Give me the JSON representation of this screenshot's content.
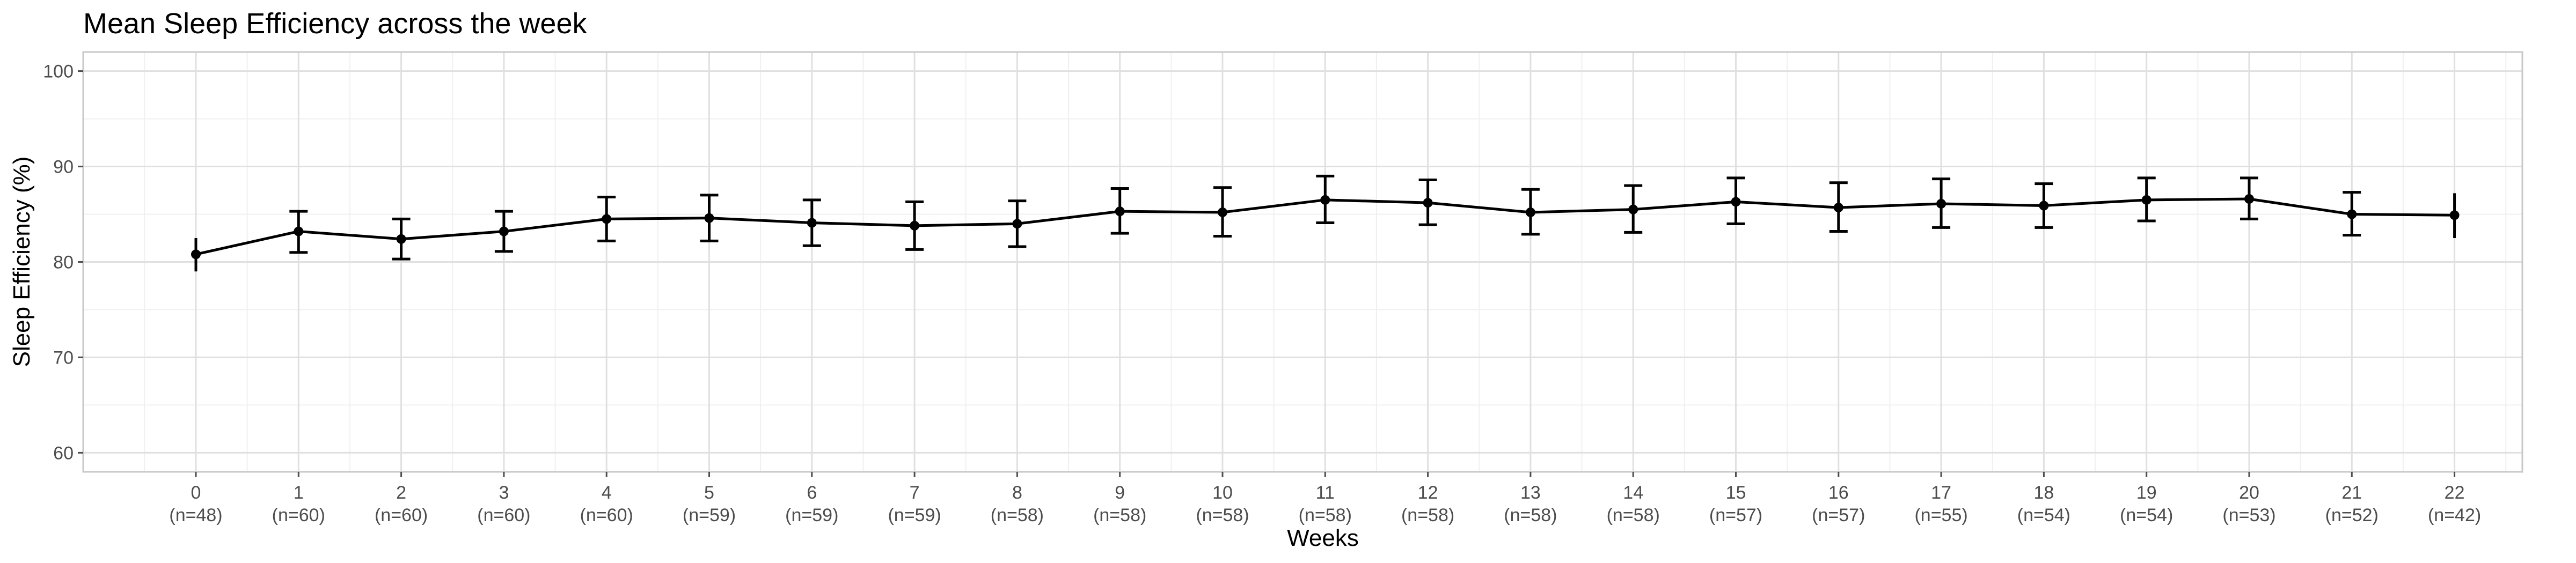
{
  "chart_data": {
    "type": "line",
    "title": "Mean Sleep Efficiency across the week",
    "xlabel": "Weeks",
    "ylabel": "Sleep Efficiency (%)",
    "ylim": [
      58,
      102
    ],
    "yticks": [
      60,
      70,
      80,
      90,
      100
    ],
    "grid": true,
    "x": [
      "0",
      "1",
      "2",
      "3",
      "4",
      "5",
      "6",
      "7",
      "8",
      "9",
      "10",
      "11",
      "12",
      "13",
      "14",
      "15",
      "16",
      "17",
      "18",
      "19",
      "20",
      "21",
      "22"
    ],
    "n_labels": [
      "(n=48)",
      "(n=60)",
      "(n=60)",
      "(n=60)",
      "(n=60)",
      "(n=59)",
      "(n=59)",
      "(n=59)",
      "(n=58)",
      "(n=58)",
      "(n=58)",
      "(n=58)",
      "(n=58)",
      "(n=58)",
      "(n=58)",
      "(n=57)",
      "(n=57)",
      "(n=55)",
      "(n=54)",
      "(n=54)",
      "(n=53)",
      "(n=52)",
      "(n=42)"
    ],
    "series": [
      {
        "values": [
          80.8,
          83.2,
          82.4,
          83.2,
          84.5,
          84.6,
          84.1,
          83.8,
          84.0,
          85.3,
          85.2,
          86.5,
          86.2,
          85.2,
          85.5,
          86.3,
          85.7,
          86.1,
          85.9,
          86.5,
          86.6,
          85.0,
          84.9
        ],
        "lower": [
          79.0,
          81.0,
          80.3,
          81.1,
          82.2,
          82.2,
          81.7,
          81.3,
          81.6,
          83.0,
          82.7,
          84.1,
          83.9,
          82.9,
          83.1,
          84.0,
          83.2,
          83.6,
          83.6,
          84.3,
          84.5,
          82.8,
          82.5
        ],
        "upper": [
          82.5,
          85.3,
          84.5,
          85.3,
          86.8,
          87.0,
          86.5,
          86.3,
          86.4,
          87.7,
          87.8,
          89.0,
          88.6,
          87.6,
          88.0,
          88.8,
          88.3,
          88.7,
          88.2,
          88.8,
          88.8,
          87.3,
          87.2
        ],
        "color": "#000000"
      }
    ]
  }
}
